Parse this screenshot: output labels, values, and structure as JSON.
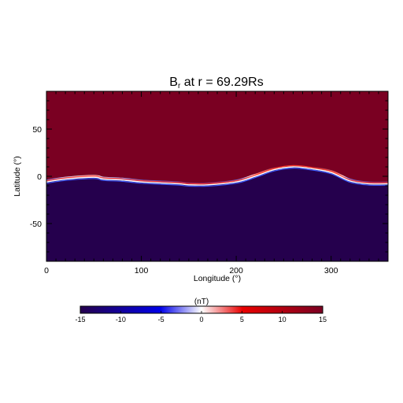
{
  "chart_data": {
    "type": "heatmap",
    "title_main": "B",
    "title_sub": "r",
    "title_rest": " at r = 69.29Rs",
    "xlabel": "Longitude (°)",
    "ylabel": "Latitude (°)",
    "xlim": [
      0,
      360
    ],
    "ylim": [
      -90,
      90
    ],
    "x_ticks": [
      0,
      100,
      200,
      300
    ],
    "y_ticks": [
      50,
      0,
      -50
    ],
    "field_north": 15,
    "field_south": -15,
    "neutral_line": {
      "longitude": [
        0,
        20,
        50,
        60,
        80,
        100,
        120,
        140,
        150,
        170,
        200,
        220,
        240,
        260,
        280,
        300,
        320,
        340,
        360
      ],
      "latitude": [
        -6,
        -3,
        -1,
        -3,
        -4,
        -6,
        -7,
        -8,
        -9,
        -9,
        -6,
        0,
        7,
        10,
        8,
        4,
        -5,
        -8,
        -8
      ]
    },
    "colorbar": {
      "unit": "(nT)",
      "range": [
        -15,
        15
      ],
      "ticks": [
        -15,
        -10,
        -5,
        0,
        5,
        10,
        15
      ],
      "colors": [
        "#25004d",
        "#0000e8",
        "#ffffff",
        "#e80000",
        "#7a0022"
      ]
    }
  }
}
